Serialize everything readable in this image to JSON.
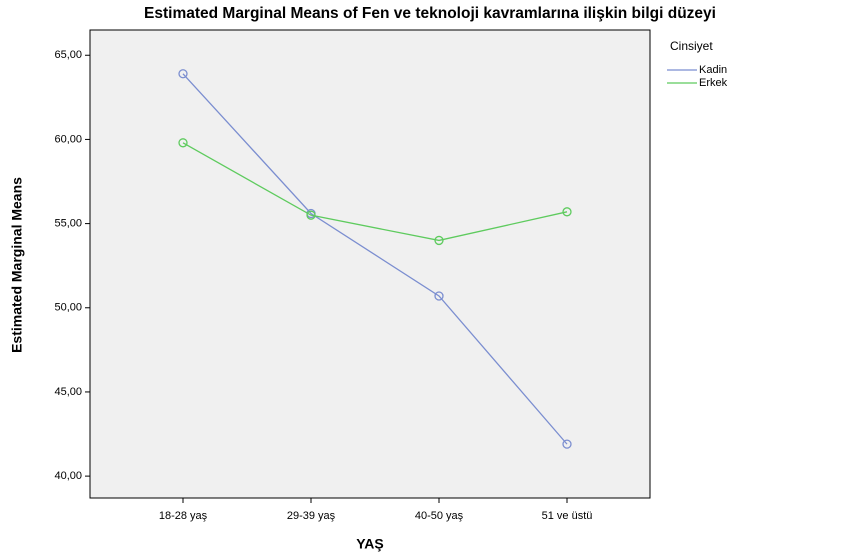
{
  "chart_data": {
    "type": "line",
    "title": "Estimated Marginal Means of Fen ve teknoloji kavramlarına ilişkin bilgi düzeyi",
    "xlabel": "YAŞ",
    "ylabel": "Estimated Marginal Means",
    "legend_title": "Cinsiyet",
    "categories": [
      "18-28 yaş",
      "29-39 yaş",
      "40-50 yaş",
      "51 ve üstü"
    ],
    "series": [
      {
        "name": "Kadin",
        "color": "#7b8ed0",
        "values": [
          63.9,
          55.6,
          50.7,
          41.9
        ]
      },
      {
        "name": "Erkek",
        "color": "#5ecb5e",
        "values": [
          59.8,
          55.5,
          54.0,
          55.7
        ]
      }
    ],
    "ylim": [
      38.7,
      66.5
    ],
    "yticks": [
      {
        "value": 40,
        "label": "40,00"
      },
      {
        "value": 45,
        "label": "45,00"
      },
      {
        "value": 50,
        "label": "50,00"
      },
      {
        "value": 55,
        "label": "55,00"
      },
      {
        "value": 60,
        "label": "60,00"
      },
      {
        "value": 65,
        "label": "65,00"
      }
    ],
    "legend": "right",
    "background": "#f0f0f0"
  }
}
